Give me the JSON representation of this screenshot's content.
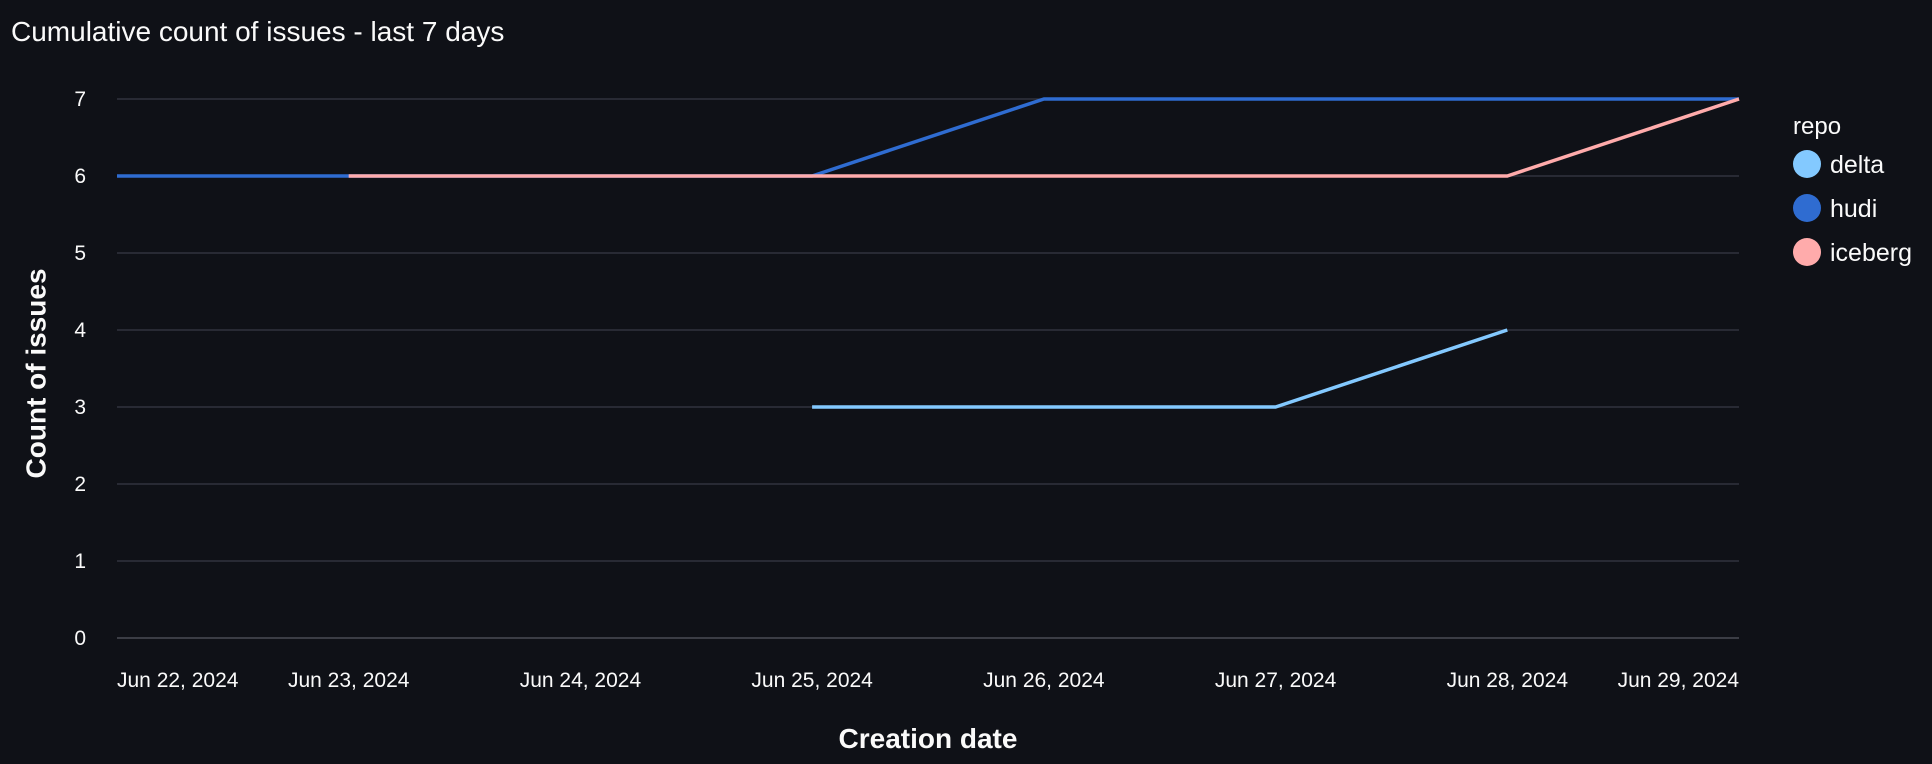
{
  "chart_data": {
    "type": "line",
    "title": "Cumulative count of issues - last 7 days",
    "xlabel": "Creation date",
    "ylabel": "Count of issues",
    "x_ticks": [
      "Jun 22, 2024",
      "Jun 23, 2024",
      "Jun 24, 2024",
      "Jun 25, 2024",
      "Jun 26, 2024",
      "Jun 27, 2024",
      "Jun 28, 2024",
      "Jun 29, 2024"
    ],
    "x_range": [
      "Jun 22, 2024",
      "Jun 29, 2024"
    ],
    "y_ticks": [
      0,
      1,
      2,
      3,
      4,
      5,
      6,
      7
    ],
    "ylim": [
      0,
      7
    ],
    "grid": true,
    "legend": {
      "title": "repo",
      "placement": "right"
    },
    "series": [
      {
        "name": "delta",
        "color": "#83c9ff",
        "points": [
          {
            "x": "Jun 25, 2024",
            "y": 3
          },
          {
            "x": "Jun 26, 2024",
            "y": 3
          },
          {
            "x": "Jun 27, 2024",
            "y": 3
          },
          {
            "x": "Jun 28, 2024",
            "y": 4
          }
        ]
      },
      {
        "name": "hudi",
        "color": "#2f6cd1",
        "points": [
          {
            "x": "Jun 22, 2024",
            "y": 6
          },
          {
            "x": "Jun 23, 2024",
            "y": 6
          },
          {
            "x": "Jun 24, 2024",
            "y": 6
          },
          {
            "x": "Jun 25, 2024",
            "y": 6
          },
          {
            "x": "Jun 26, 2024",
            "y": 7
          },
          {
            "x": "Jun 27, 2024",
            "y": 7
          },
          {
            "x": "Jun 28, 2024",
            "y": 7
          },
          {
            "x": "Jun 29, 2024",
            "y": 7
          }
        ]
      },
      {
        "name": "iceberg",
        "color": "#ffabab",
        "points": [
          {
            "x": "Jun 23, 2024",
            "y": 6
          },
          {
            "x": "Jun 24, 2024",
            "y": 6
          },
          {
            "x": "Jun 25, 2024",
            "y": 6
          },
          {
            "x": "Jun 26, 2024",
            "y": 6
          },
          {
            "x": "Jun 27, 2024",
            "y": 6
          },
          {
            "x": "Jun 28, 2024",
            "y": 6
          },
          {
            "x": "Jun 29, 2024",
            "y": 7
          }
        ]
      }
    ]
  }
}
